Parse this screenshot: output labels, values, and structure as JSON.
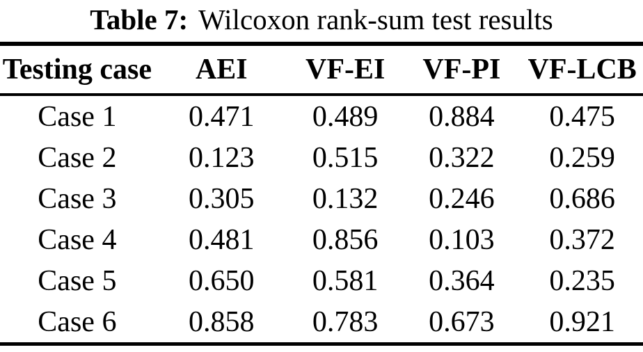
{
  "caption": {
    "label": "Table 7:",
    "text": "Wilcoxon rank-sum test results"
  },
  "table": {
    "columns": [
      "Testing case",
      "AEI",
      "VF-EI",
      "VF-PI",
      "VF-LCB"
    ],
    "rows": [
      [
        "Case 1",
        "0.471",
        "0.489",
        "0.884",
        "0.475"
      ],
      [
        "Case 2",
        "0.123",
        "0.515",
        "0.322",
        "0.259"
      ],
      [
        "Case 3",
        "0.305",
        "0.132",
        "0.246",
        "0.686"
      ],
      [
        "Case 4",
        "0.481",
        "0.856",
        "0.103",
        "0.372"
      ],
      [
        "Case 5",
        "0.650",
        "0.581",
        "0.364",
        "0.235"
      ],
      [
        "Case 6",
        "0.858",
        "0.783",
        "0.673",
        "0.921"
      ]
    ]
  },
  "colors": {
    "text": "#000000",
    "background": "#ffffff",
    "rule": "#000000"
  }
}
